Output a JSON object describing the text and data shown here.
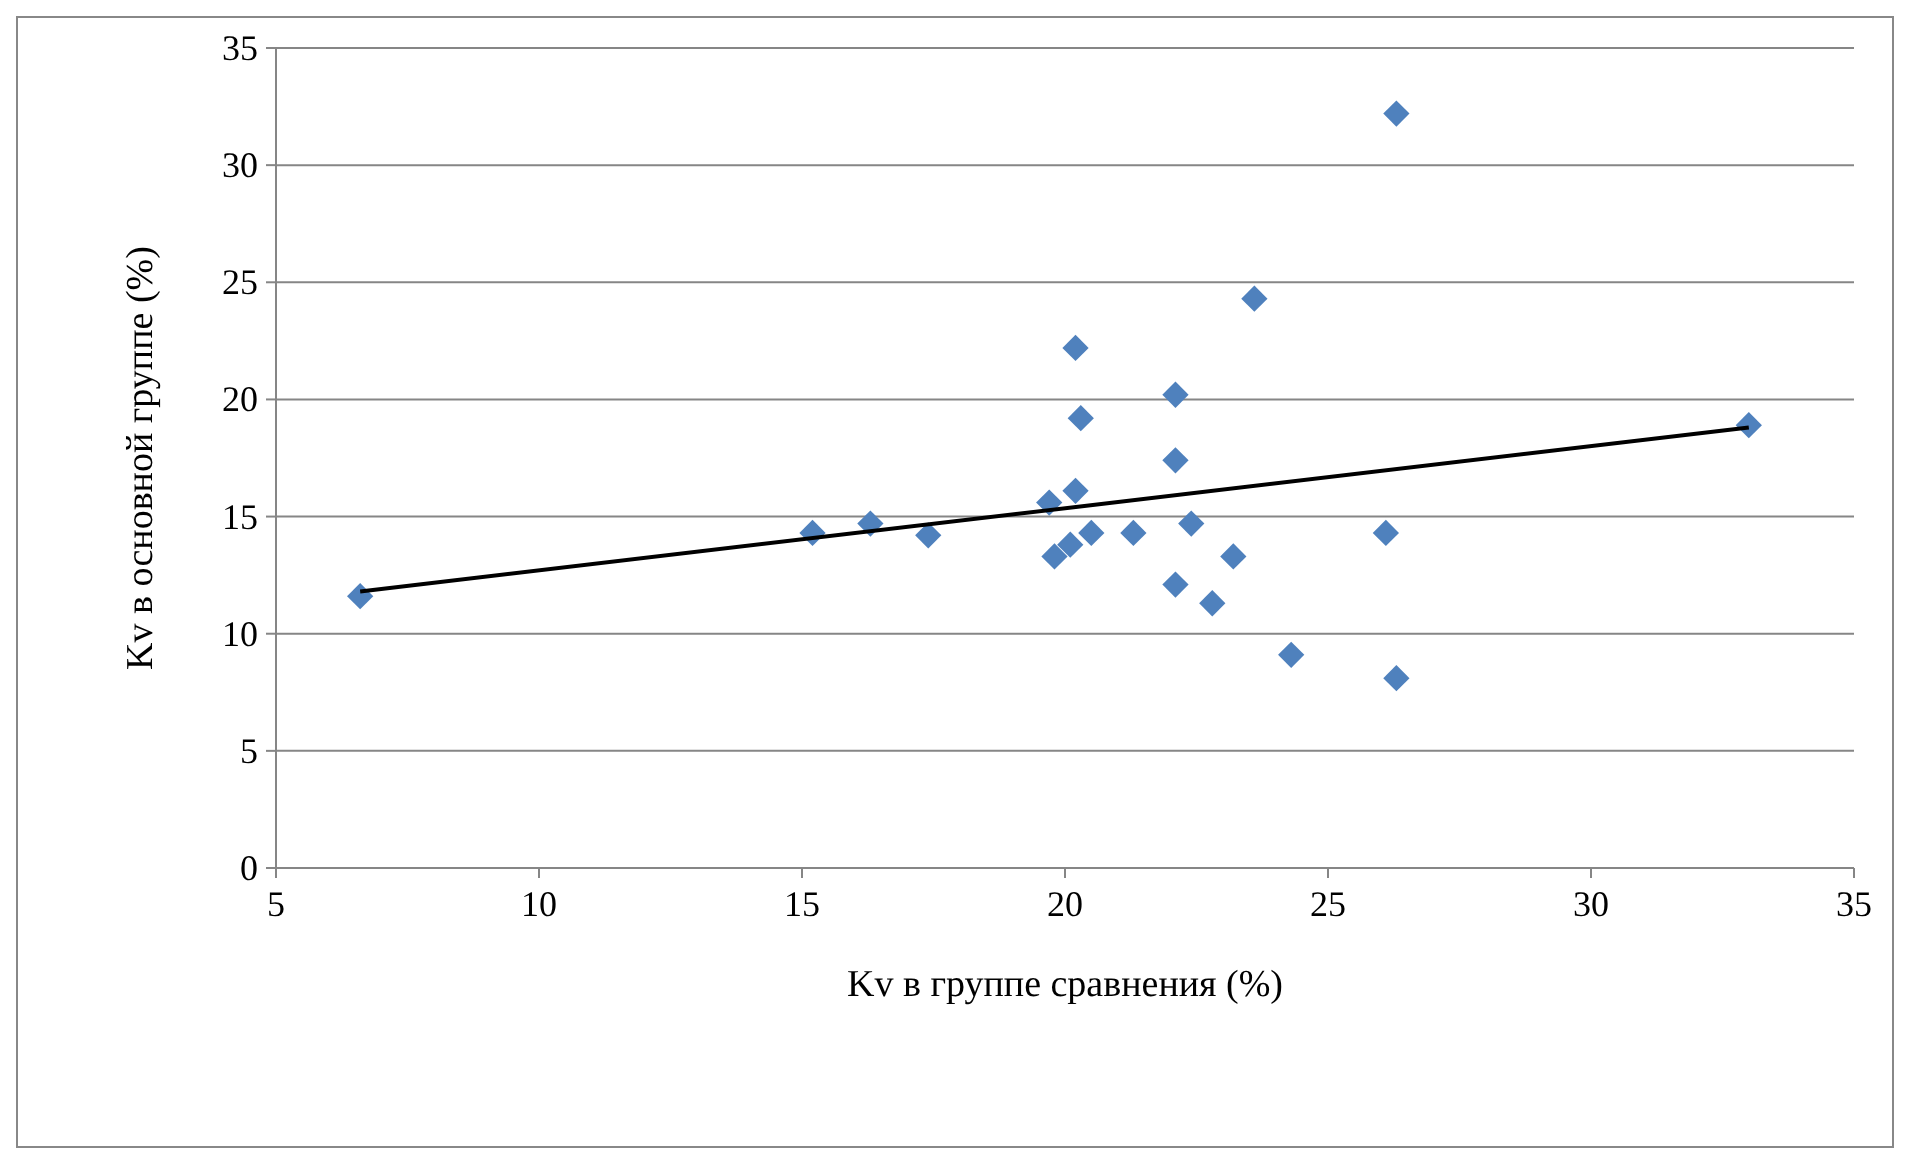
{
  "chart_data": {
    "type": "scatter",
    "xlabel": "Kv в группе сравнения (%)",
    "ylabel": "Kv в основной группе (%)",
    "xlim": [
      5,
      35
    ],
    "xticks": [
      5,
      10,
      15,
      20,
      25,
      30,
      35
    ],
    "ylim": [
      0,
      35
    ],
    "yticks": [
      0,
      5,
      10,
      15,
      20,
      25,
      30,
      35
    ],
    "grid": "y",
    "marker": "diamond",
    "series": [
      {
        "color": "#4f81bd",
        "x": [
          6.6,
          15.2,
          16.3,
          17.4,
          19.7,
          19.8,
          20.2,
          20.3,
          20.2,
          20.1,
          20.5,
          21.3,
          22.1,
          22.1,
          22.1,
          22.4,
          22.8,
          23.2,
          23.6,
          24.3,
          26.1,
          26.3,
          26.3,
          33.0
        ],
        "values": [
          11.6,
          14.3,
          14.7,
          14.2,
          15.6,
          13.3,
          22.2,
          19.2,
          16.1,
          13.8,
          14.3,
          14.3,
          20.2,
          17.4,
          12.1,
          14.7,
          11.3,
          13.3,
          24.3,
          9.1,
          14.3,
          32.2,
          8.1,
          18.9
        ]
      },
      {
        "type": "line",
        "color": "#000000",
        "marker": "none",
        "x": [
          6.6,
          33.0
        ],
        "values": [
          11.8,
          18.8
        ]
      }
    ]
  }
}
